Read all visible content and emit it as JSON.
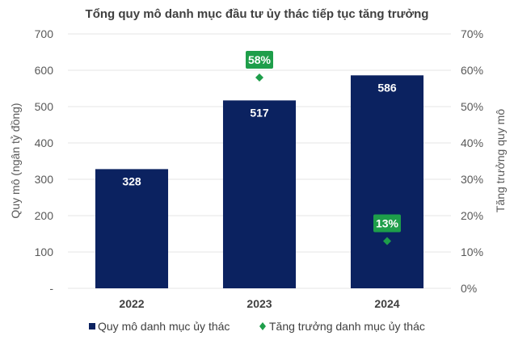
{
  "chart_data": {
    "type": "bar",
    "title": "Tổng quy mô danh mục đầu tư ủy thác tiếp tục tăng trưởng",
    "categories": [
      "2022",
      "2023",
      "2024"
    ],
    "series": [
      {
        "name": "Quy mô danh mục ủy thác",
        "kind": "bar",
        "axis": "left",
        "color": "#0b2260",
        "values": [
          328,
          517,
          586
        ],
        "labels": [
          "328",
          "517",
          "586"
        ]
      },
      {
        "name": "Tăng trưởng danh mục ủy thác",
        "kind": "marker",
        "axis": "right",
        "color": "#1e9e4a",
        "values": [
          null,
          58,
          13
        ],
        "labels": [
          null,
          "58%",
          "13%"
        ]
      }
    ],
    "ylabel": "Quy mô (ngân tỷ đồng)",
    "y2label": "Tăng trưởng quy mô",
    "ylim": [
      0,
      700
    ],
    "y2lim": [
      0,
      70
    ],
    "yticks": [
      "-",
      "100",
      "200",
      "300",
      "400",
      "500",
      "600",
      "700"
    ],
    "y2ticks": [
      "0%",
      "10%",
      "20%",
      "30%",
      "40%",
      "50%",
      "60%",
      "70%"
    ],
    "grid": true,
    "legend": "bottom"
  }
}
